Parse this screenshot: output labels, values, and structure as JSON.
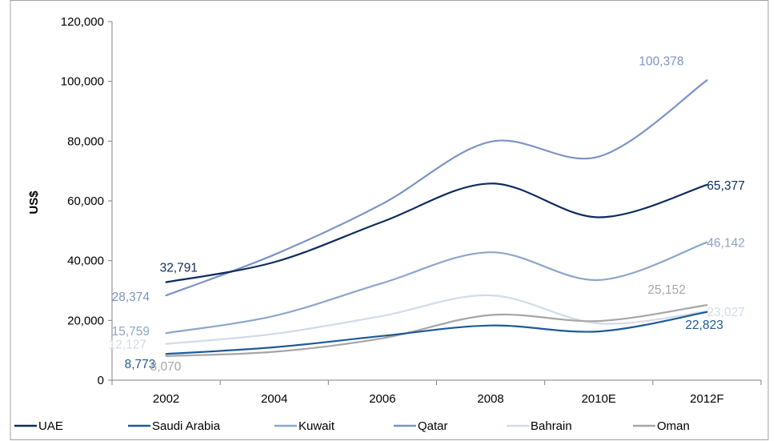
{
  "chart_data": {
    "type": "line",
    "title": "",
    "xlabel": "",
    "ylabel": "US$",
    "categories": [
      "2002",
      "2004",
      "2006",
      "2008",
      "2010E",
      "2012F"
    ],
    "ylim": [
      0,
      120000
    ],
    "yticks": [
      0,
      20000,
      40000,
      60000,
      80000,
      100000,
      120000
    ],
    "ytick_labels": [
      "0",
      "20,000",
      "40,000",
      "60,000",
      "80,000",
      "100,000",
      "120,000"
    ],
    "grid": false,
    "legend_position": "bottom",
    "series": [
      {
        "name": "UAE",
        "color": "#0d2c5b",
        "values": [
          32791,
          39500,
          53000,
          65800,
          54500,
          65377
        ],
        "labels": [
          {
            "index": 0,
            "text": "32,791"
          },
          {
            "index": 5,
            "text": "65,377"
          }
        ]
      },
      {
        "name": "Saudi Arabia",
        "color": "#1d5a96",
        "values": [
          8773,
          11000,
          14800,
          18300,
          16300,
          22823
        ],
        "labels": [
          {
            "index": 0,
            "text": "8,773"
          },
          {
            "index": 5,
            "text": "22,823"
          }
        ]
      },
      {
        "name": "Kuwait",
        "color": "#8ca6c9",
        "values": [
          15759,
          21500,
          32500,
          42800,
          33500,
          46142
        ],
        "labels": [
          {
            "index": 0,
            "text": "15,759"
          },
          {
            "index": 5,
            "text": "46,142"
          }
        ]
      },
      {
        "name": "Qatar",
        "color": "#7c93c4",
        "values": [
          28374,
          42000,
          59000,
          79800,
          74800,
          100378
        ],
        "labels": [
          {
            "index": 0,
            "text": "28,374"
          },
          {
            "index": 5,
            "text": "100,378"
          }
        ]
      },
      {
        "name": "Bahrain",
        "color": "#d2dbe8",
        "values": [
          12127,
          15500,
          21500,
          28400,
          19000,
          23027
        ],
        "labels": [
          {
            "index": 0,
            "text": "12,127"
          },
          {
            "index": 5,
            "text": "23,027"
          }
        ]
      },
      {
        "name": "Oman",
        "color": "#a6a6a6",
        "values": [
          8070,
          9500,
          14000,
          21800,
          19800,
          25152
        ],
        "labels": [
          {
            "index": 0,
            "text": "8,070"
          },
          {
            "index": 5,
            "text": "25,152"
          }
        ]
      }
    ]
  }
}
